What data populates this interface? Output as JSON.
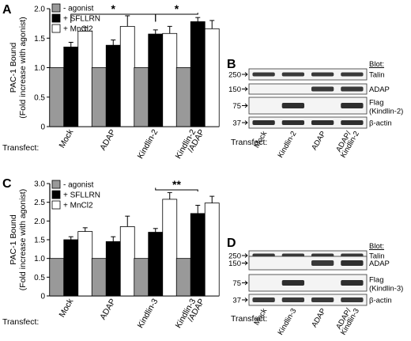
{
  "figure": {
    "panels": {
      "A": "A",
      "B": "B",
      "C": "C",
      "D": "D"
    }
  },
  "chart_data": [
    {
      "id": "A",
      "type": "bar",
      "ylabel": "PAC-1 Bound",
      "ylabel2": "(Fold increase with agonist)",
      "xlabel": "Transfect:",
      "categories": [
        "Mock",
        "ADAP",
        "Kindlin-2",
        "Kindlin-2\n/ADAP"
      ],
      "ylim": [
        0,
        2.0
      ],
      "yticks": [
        "0",
        "0.5",
        "1.0",
        "1.5",
        "2.0"
      ],
      "legend": [
        "- agonist",
        "+ SFLLRN",
        "+ MnCl2"
      ],
      "legend_position": "top-left",
      "series": [
        {
          "name": "- agonist",
          "color": "#999999",
          "values": [
            1.0,
            1.0,
            1.0,
            1.0
          ],
          "errors": [
            0,
            0,
            0,
            0
          ]
        },
        {
          "name": "+ SFLLRN",
          "color": "#000000",
          "values": [
            1.35,
            1.38,
            1.57,
            1.78
          ],
          "errors": [
            0.08,
            0.09,
            0.07,
            0.07
          ]
        },
        {
          "name": "+ MnCl2",
          "color": "#ffffff",
          "values": [
            1.62,
            1.7,
            1.58,
            1.66
          ],
          "errors": [
            0.06,
            0.18,
            0.12,
            0.14
          ]
        }
      ],
      "significance": [
        {
          "from": 0,
          "to": 2,
          "label": "*"
        },
        {
          "from": 2,
          "to": 3,
          "label": "*"
        }
      ]
    },
    {
      "id": "C",
      "type": "bar",
      "ylabel": "PAC-1 Bound",
      "ylabel2": "(Fold increase with agonist)",
      "xlabel": "Transfect:",
      "categories": [
        "Mock",
        "ADAP",
        "Kindlin-3",
        "Kindlin-3\n/ADAP"
      ],
      "ylim": [
        0,
        3.0
      ],
      "yticks": [
        "0",
        "0.5",
        "1.0",
        "1.5",
        "2.0",
        "2.5",
        "3.0"
      ],
      "legend": [
        "- agonist",
        "+ SFLLRN",
        "+ MnCl2"
      ],
      "legend_position": "top-left",
      "series": [
        {
          "name": "- agonist",
          "color": "#999999",
          "values": [
            1.0,
            1.0,
            1.0,
            1.0
          ],
          "errors": [
            0,
            0,
            0,
            0
          ]
        },
        {
          "name": "+ SFLLRN",
          "color": "#000000",
          "values": [
            1.5,
            1.45,
            1.7,
            2.2
          ],
          "errors": [
            0.08,
            0.13,
            0.1,
            0.22
          ]
        },
        {
          "name": "+ MnCl2",
          "color": "#ffffff",
          "values": [
            1.72,
            1.85,
            2.58,
            2.48
          ],
          "errors": [
            0.1,
            0.28,
            0.18,
            0.18
          ]
        }
      ],
      "significance": [
        {
          "from": 2,
          "to": 3,
          "label": "**"
        }
      ]
    }
  ],
  "blots": [
    {
      "id": "B",
      "header": "Blot:",
      "mw_markers": [
        "250",
        "150",
        "75",
        "37"
      ],
      "rows": [
        {
          "label": "Talin",
          "marker": "250"
        },
        {
          "label": "ADAP",
          "marker": "150"
        },
        {
          "label": "Flag",
          "label2": "(Kindlin-2)",
          "marker": "75"
        },
        {
          "label": "β-actin",
          "marker": "37"
        }
      ],
      "xlabel": "Transfect:",
      "lanes": [
        "Mock",
        "Kindlin-2",
        "ADAP",
        "ADAP/\nKindlin-2"
      ]
    },
    {
      "id": "D",
      "header": "Blot:",
      "mw_markers": [
        "250",
        "150",
        "75",
        "37"
      ],
      "rows": [
        {
          "label": "Talin",
          "marker": "250"
        },
        {
          "label": "ADAP",
          "marker": "150"
        },
        {
          "label": "Flag",
          "label2": "(Kindlin-3)",
          "marker": "75"
        },
        {
          "label": "β-actin",
          "marker": "37"
        }
      ],
      "xlabel": "Transfect:",
      "lanes": [
        "Mock",
        "Kindlin-3",
        "ADAP",
        "ADAP/\nKindlin-3"
      ]
    }
  ]
}
